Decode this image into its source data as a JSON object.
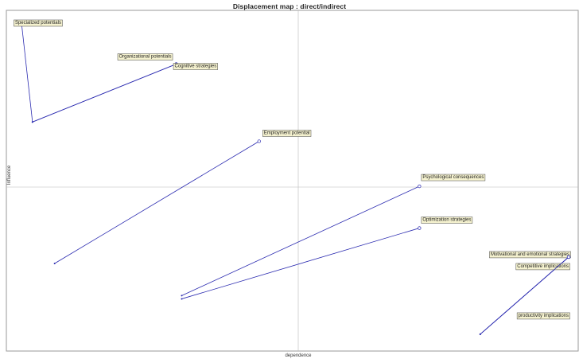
{
  "chart_data": {
    "type": "scatter",
    "title": "Displacement map :  direct/indirect",
    "xlabel": "dependence",
    "ylabel": "Influence",
    "xlim": [
      0,
      100
    ],
    "ylim": [
      0,
      100
    ],
    "grid": false,
    "line_color": "#2b2bb0",
    "label_bg": "#f5f2cf",
    "items": [
      {
        "name": "Specialized potentials",
        "from": [
          3,
          69
        ],
        "to": [
          1,
          100
        ]
      },
      {
        "name": "Organizational potentials",
        "from": [
          3,
          69
        ],
        "to": [
          29,
          87
        ]
      },
      {
        "name": "Cognitive strategies",
        "from": [
          3,
          69
        ],
        "to": [
          29,
          87
        ]
      },
      {
        "name": "Employment potential",
        "from": [
          7,
          25
        ],
        "to": [
          44,
          63
        ]
      },
      {
        "name": "Psychological consequences",
        "from": [
          30,
          15
        ],
        "to": [
          73,
          49
        ]
      },
      {
        "name": "Optimization strategies",
        "from": [
          30,
          14
        ],
        "to": [
          73,
          36
        ]
      },
      {
        "name": "Motivational and emotional strategies",
        "from": [
          84,
          3
        ],
        "to": [
          100,
          27
        ]
      },
      {
        "name": "Competitive implications",
        "from": [
          84,
          3
        ],
        "to": [
          100,
          27
        ]
      },
      {
        "name": "productivity implications",
        "from": [
          84,
          3
        ],
        "to": [
          100,
          27
        ]
      }
    ]
  }
}
